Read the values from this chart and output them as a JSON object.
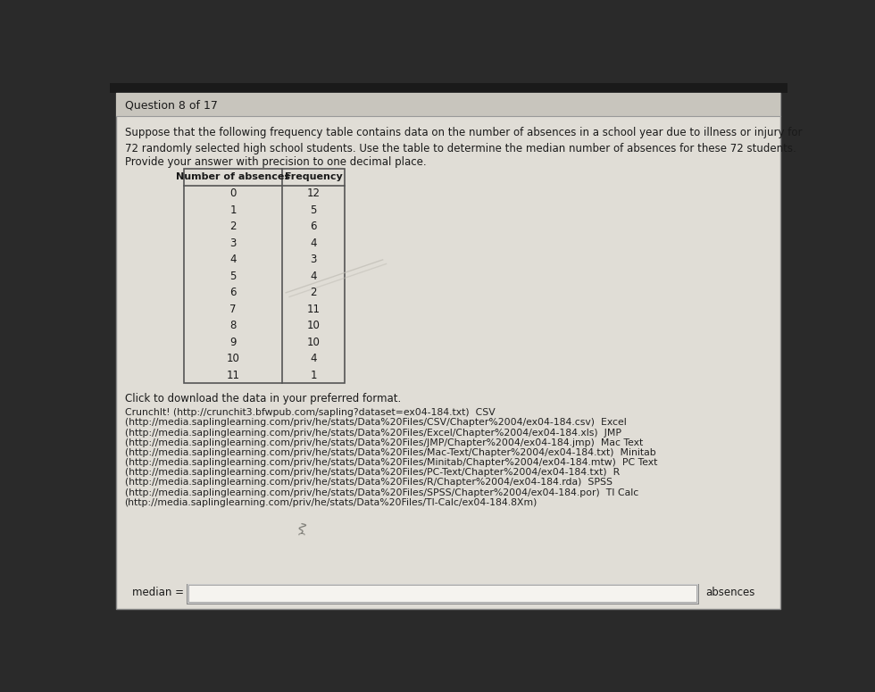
{
  "title_bar": "Question 8 of 17",
  "paragraph1": "Suppose that the following frequency table contains data on the number of absences in a school year due to illness or injury for\n72 randomly selected high school students. Use the table to determine the median number of absences for these 72 students.",
  "paragraph2": "Provide your answer with precision to one decimal place.",
  "table_header": [
    "Number of absences",
    "Frequency"
  ],
  "table_data": [
    [
      0,
      12
    ],
    [
      1,
      5
    ],
    [
      2,
      6
    ],
    [
      3,
      4
    ],
    [
      4,
      3
    ],
    [
      5,
      4
    ],
    [
      6,
      2
    ],
    [
      7,
      11
    ],
    [
      8,
      10
    ],
    [
      9,
      10
    ],
    [
      10,
      4
    ],
    [
      11,
      1
    ]
  ],
  "click_text": "Click to download the data in your preferred format.",
  "links_lines": [
    "CrunchIt! (http://crunchit3.bfwpub.com/sapling?dataset=ex04-184.txt)  CSV",
    "(http://media.saplinglearning.com/priv/he/stats/Data%20Files/CSV/Chapter%2004/ex04-184.csv)  Excel",
    "(http://media.saplinglearning.com/priv/he/stats/Data%20Files/Excel/Chapter%2004/ex04-184.xls)  JMP",
    "(http://media.saplinglearning.com/priv/he/stats/Data%20Files/JMP/Chapter%2004/ex04-184.jmp)  Mac Text",
    "(http://media.saplinglearning.com/priv/he/stats/Data%20Files/Mac-Text/Chapter%2004/ex04-184.txt)  Minitab",
    "(http://media.saplinglearning.com/priv/he/stats/Data%20Files/Minitab/Chapter%2004/ex04-184.mtw)  PC Text",
    "(http://media.saplinglearning.com/priv/he/stats/Data%20Files/PC-Text/Chapter%2004/ex04-184.txt)  R",
    "(http://media.saplinglearning.com/priv/he/stats/Data%20Files/R/Chapter%2004/ex04-184.rda)  SPSS",
    "(http://media.saplinglearning.com/priv/he/stats/Data%20Files/SPSS/Chapter%2004/ex04-184.por)  TI Calc",
    "(http://media.saplinglearning.com/priv/he/stats/Data%20Files/TI-Calc/ex04-184.8Xm)"
  ],
  "bottom_label_left": "median =",
  "bottom_label_right": "absences",
  "outer_bg": "#2a2a2a",
  "inner_bg": "#e0ddd6",
  "title_bg": "#c8c5bd",
  "title_sep_color": "#999999",
  "table_border_color": "#555555",
  "table_bg": "#e0ddd6",
  "text_color": "#1a1a1a",
  "link_color": "#222222",
  "title_font_size": 9.0,
  "body_font_size": 8.5,
  "table_font_size": 8.5,
  "link_font_size": 7.8,
  "input_box_color": "#f0eeea"
}
